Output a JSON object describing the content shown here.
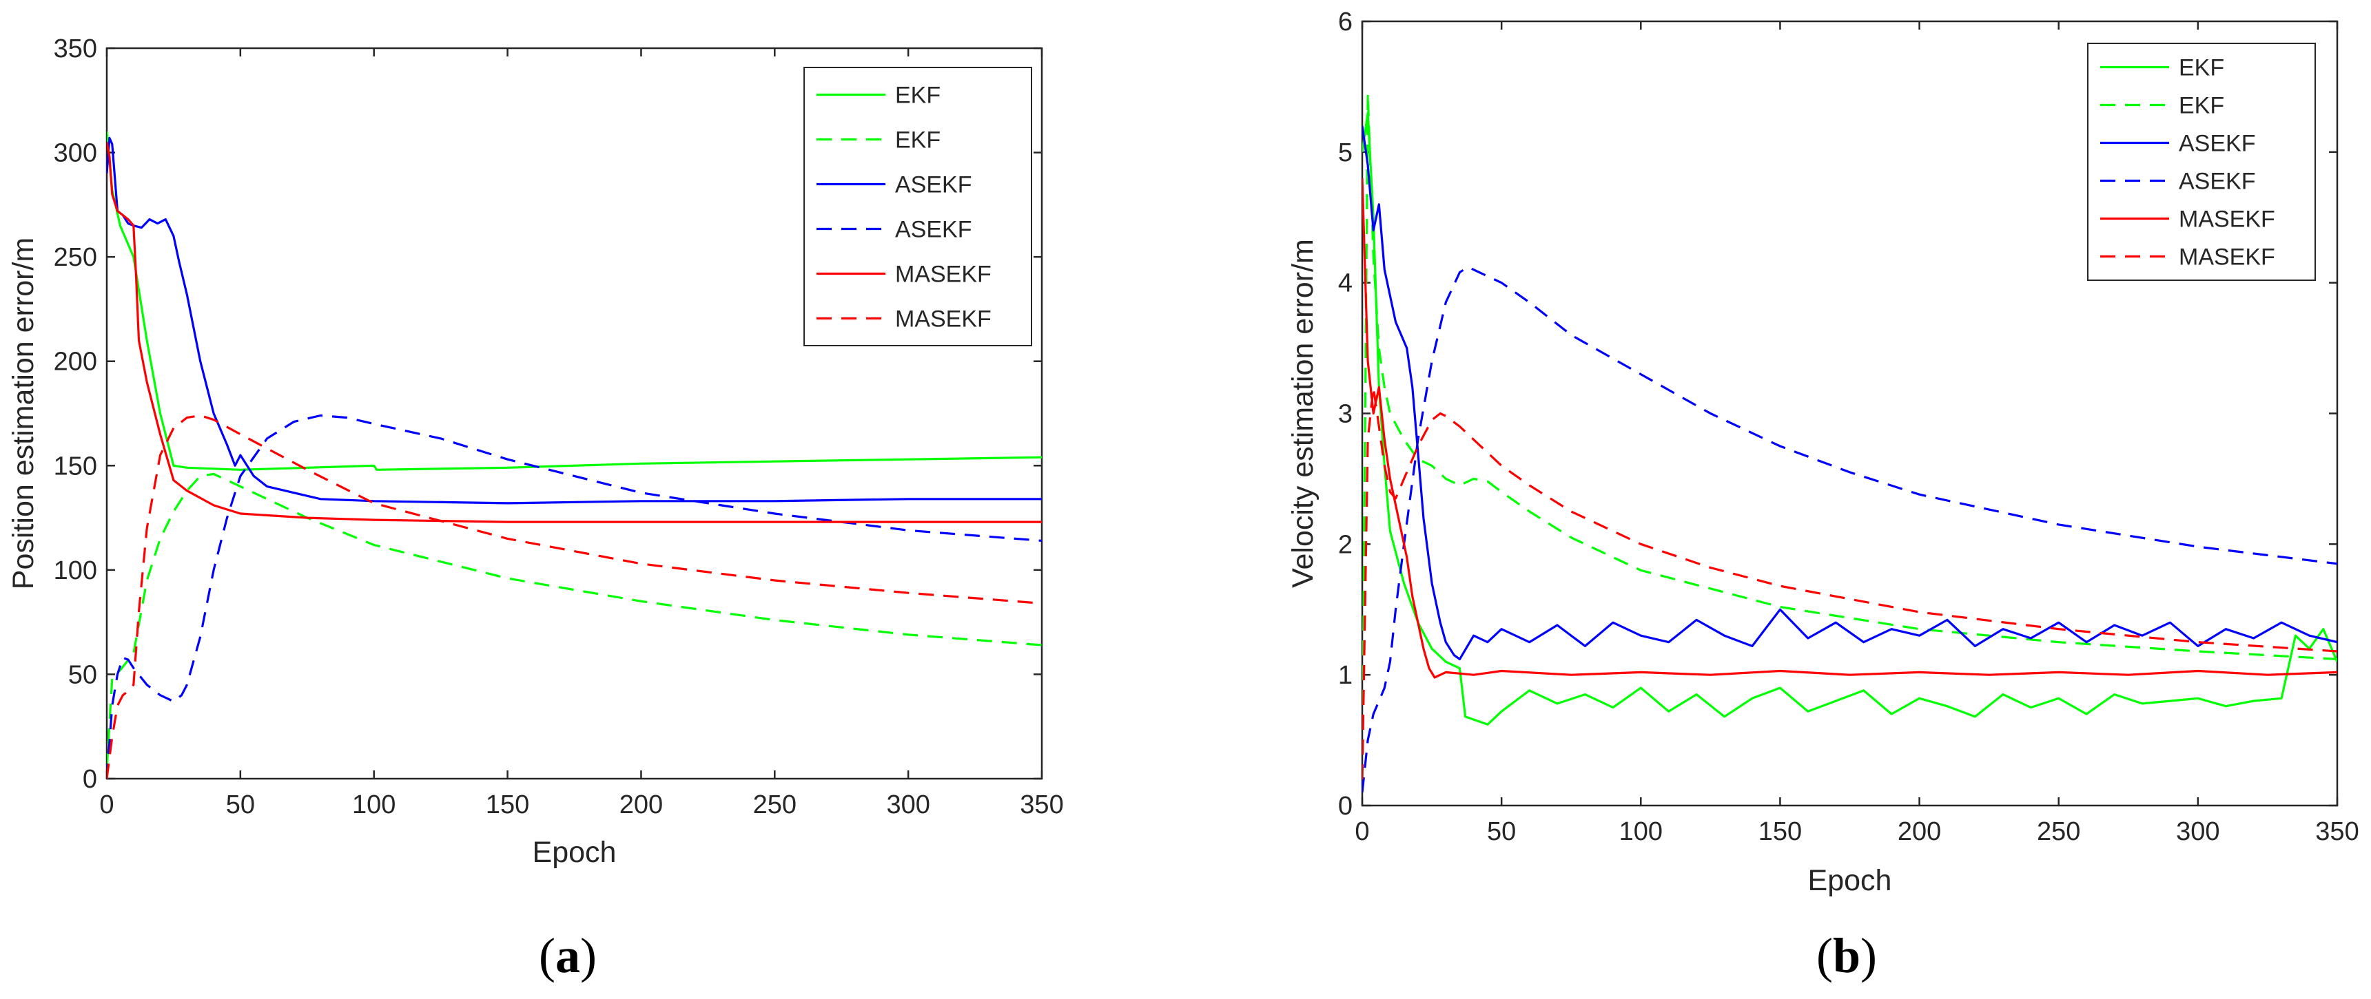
{
  "chart_data": [
    {
      "type": "line",
      "panel_label": "a",
      "xlabel": "Epoch",
      "ylabel": "Position estimation error/m",
      "xlim": [
        0,
        350
      ],
      "ylim": [
        0,
        350
      ],
      "xticks": [
        "0",
        "50",
        "100",
        "150",
        "200",
        "250",
        "300",
        "350"
      ],
      "yticks": [
        "0",
        "50",
        "100",
        "150",
        "200",
        "250",
        "300",
        "350"
      ],
      "legend_position": "top-right",
      "series": [
        {
          "name": "EKF",
          "color": "#00ff00",
          "dash": "solid",
          "x": [
            0,
            2,
            5,
            10,
            15,
            20,
            25,
            30,
            50,
            100,
            101,
            150,
            200,
            250,
            300,
            350
          ],
          "y": [
            310,
            282,
            265,
            250,
            210,
            175,
            150,
            149,
            148,
            150,
            148,
            149,
            151,
            152,
            153,
            154
          ]
        },
        {
          "name": "EKF",
          "color": "#00ff00",
          "dash": "dashed",
          "x": [
            0,
            2,
            5,
            10,
            15,
            20,
            25,
            30,
            35,
            40,
            50,
            75,
            100,
            150,
            200,
            250,
            300,
            350
          ],
          "y": [
            5,
            48,
            52,
            60,
            95,
            115,
            128,
            138,
            145,
            146,
            140,
            125,
            112,
            96,
            85,
            76,
            69,
            64
          ]
        },
        {
          "name": "ASEKF",
          "color": "#0000ff",
          "dash": "solid",
          "x": [
            0,
            1,
            2,
            4,
            6,
            8,
            10,
            13,
            16,
            19,
            22,
            25,
            27,
            30,
            35,
            40,
            45,
            48,
            50,
            55,
            60,
            80,
            100,
            150,
            200,
            250,
            300,
            350
          ],
          "y": [
            290,
            307,
            304,
            272,
            270,
            266,
            265,
            264,
            268,
            266,
            268,
            260,
            248,
            232,
            200,
            175,
            160,
            150,
            155,
            145,
            140,
            134,
            133,
            132,
            133,
            133,
            134,
            134
          ]
        },
        {
          "name": "ASEKF",
          "color": "#0000ff",
          "dash": "dashed",
          "x": [
            0,
            2,
            4,
            6,
            8,
            10,
            15,
            20,
            25,
            28,
            30,
            35,
            40,
            45,
            50,
            60,
            70,
            80,
            90,
            100,
            125,
            150,
            175,
            200,
            250,
            300,
            350
          ],
          "y": [
            0,
            35,
            50,
            58,
            57,
            53,
            45,
            40,
            37,
            40,
            45,
            68,
            100,
            125,
            145,
            163,
            171,
            174,
            173,
            170,
            163,
            153,
            145,
            137,
            127,
            119,
            114
          ]
        },
        {
          "name": "MASEKF",
          "color": "#ff0000",
          "dash": "solid",
          "x": [
            0,
            1,
            2,
            4,
            6,
            8,
            10,
            11,
            12,
            15,
            20,
            25,
            30,
            40,
            50,
            75,
            100,
            150,
            200,
            250,
            300,
            350
          ],
          "y": [
            305,
            298,
            280,
            272,
            270,
            268,
            265,
            240,
            210,
            190,
            165,
            143,
            138,
            131,
            127,
            125,
            124,
            123,
            123,
            123,
            123,
            123
          ]
        },
        {
          "name": "MASEKF",
          "color": "#ff0000",
          "dash": "dashed",
          "x": [
            0,
            2,
            4,
            6,
            8,
            10,
            12,
            15,
            20,
            25,
            30,
            35,
            40,
            50,
            75,
            100,
            150,
            200,
            250,
            300,
            350
          ],
          "y": [
            0,
            20,
            35,
            40,
            42,
            45,
            80,
            120,
            155,
            168,
            173,
            174,
            172,
            165,
            148,
            132,
            115,
            103,
            95,
            89,
            84
          ]
        }
      ]
    },
    {
      "type": "line",
      "panel_label": "b",
      "xlabel": "Epoch",
      "ylabel": "Velocity estimation error/m",
      "xlim": [
        0,
        350
      ],
      "ylim": [
        0,
        6
      ],
      "xticks": [
        "0",
        "50",
        "100",
        "150",
        "200",
        "250",
        "300",
        "350"
      ],
      "yticks": [
        "0",
        "1",
        "2",
        "3",
        "4",
        "5",
        "6"
      ],
      "legend_position": "top-right",
      "series": [
        {
          "name": "EKF",
          "color": "#00ff00",
          "dash": "solid",
          "x": [
            0,
            2,
            4,
            6,
            8,
            10,
            15,
            20,
            25,
            30,
            35,
            37,
            45,
            50,
            60,
            70,
            80,
            90,
            100,
            110,
            120,
            130,
            140,
            150,
            160,
            170,
            180,
            190,
            200,
            210,
            220,
            230,
            240,
            250,
            260,
            270,
            280,
            290,
            300,
            310,
            320,
            330,
            335,
            340,
            345,
            350
          ],
          "y": [
            5.0,
            5.3,
            4.5,
            3.2,
            2.6,
            2.1,
            1.7,
            1.4,
            1.2,
            1.1,
            1.05,
            0.68,
            0.62,
            0.72,
            0.88,
            0.78,
            0.85,
            0.75,
            0.9,
            0.72,
            0.85,
            0.68,
            0.82,
            0.9,
            0.72,
            0.8,
            0.88,
            0.7,
            0.82,
            0.76,
            0.68,
            0.85,
            0.75,
            0.82,
            0.7,
            0.85,
            0.78,
            0.8,
            0.82,
            0.76,
            0.8,
            0.82,
            1.3,
            1.2,
            1.35,
            1.1
          ]
        },
        {
          "name": "EKF",
          "color": "#00ff00",
          "dash": "dashed",
          "x": [
            0,
            2,
            4,
            6,
            8,
            10,
            15,
            20,
            25,
            30,
            35,
            40,
            45,
            50,
            60,
            75,
            100,
            150,
            200,
            250,
            300,
            350
          ],
          "y": [
            0.2,
            5.45,
            4.2,
            3.5,
            3.2,
            3.0,
            2.8,
            2.65,
            2.6,
            2.5,
            2.45,
            2.5,
            2.48,
            2.4,
            2.25,
            2.05,
            1.8,
            1.52,
            1.35,
            1.25,
            1.18,
            1.12
          ]
        },
        {
          "name": "ASEKF",
          "color": "#0000ff",
          "dash": "solid",
          "x": [
            0,
            2,
            4,
            6,
            8,
            10,
            12,
            14,
            16,
            18,
            20,
            22,
            25,
            28,
            30,
            33,
            35,
            40,
            45,
            50,
            60,
            70,
            80,
            90,
            100,
            110,
            120,
            130,
            140,
            150,
            160,
            170,
            180,
            190,
            200,
            210,
            220,
            230,
            240,
            250,
            260,
            270,
            280,
            290,
            300,
            310,
            320,
            330,
            340,
            350
          ],
          "y": [
            5.2,
            4.9,
            4.4,
            4.6,
            4.1,
            3.9,
            3.7,
            3.6,
            3.5,
            3.2,
            2.7,
            2.2,
            1.7,
            1.4,
            1.25,
            1.15,
            1.12,
            1.3,
            1.25,
            1.35,
            1.25,
            1.38,
            1.22,
            1.4,
            1.3,
            1.25,
            1.42,
            1.3,
            1.22,
            1.5,
            1.28,
            1.4,
            1.25,
            1.35,
            1.3,
            1.42,
            1.22,
            1.35,
            1.28,
            1.4,
            1.25,
            1.38,
            1.3,
            1.4,
            1.22,
            1.35,
            1.28,
            1.4,
            1.3,
            1.25
          ]
        },
        {
          "name": "ASEKF",
          "color": "#0000ff",
          "dash": "dashed",
          "x": [
            0,
            2,
            4,
            6,
            8,
            10,
            12,
            15,
            20,
            25,
            30,
            35,
            38,
            40,
            45,
            50,
            60,
            75,
            100,
            125,
            150,
            175,
            200,
            250,
            300,
            350
          ],
          "y": [
            0.1,
            0.5,
            0.7,
            0.8,
            0.9,
            1.1,
            1.5,
            2.0,
            2.8,
            3.4,
            3.85,
            4.08,
            4.12,
            4.1,
            4.05,
            4.0,
            3.85,
            3.6,
            3.3,
            3.0,
            2.75,
            2.55,
            2.38,
            2.15,
            1.98,
            1.85
          ]
        },
        {
          "name": "MASEKF",
          "color": "#ff0000",
          "dash": "solid",
          "x": [
            0,
            2,
            4,
            6,
            8,
            10,
            12,
            14,
            16,
            18,
            20,
            22,
            24,
            26,
            28,
            30,
            40,
            50,
            75,
            100,
            125,
            150,
            175,
            200,
            225,
            250,
            275,
            300,
            325,
            350
          ],
          "y": [
            4.8,
            3.4,
            3.0,
            3.2,
            2.8,
            2.5,
            2.3,
            2.1,
            1.9,
            1.6,
            1.4,
            1.2,
            1.05,
            0.98,
            1.0,
            1.02,
            1.0,
            1.03,
            1.0,
            1.02,
            1.0,
            1.03,
            1.0,
            1.02,
            1.0,
            1.02,
            1.0,
            1.03,
            1.0,
            1.02
          ]
        },
        {
          "name": "MASEKF",
          "color": "#ff0000",
          "dash": "dashed",
          "x": [
            0,
            2,
            4,
            6,
            8,
            10,
            12,
            15,
            20,
            25,
            28,
            30,
            35,
            40,
            50,
            60,
            75,
            100,
            125,
            150,
            200,
            250,
            300,
            350
          ],
          "y": [
            0.2,
            2.8,
            3.2,
            2.9,
            2.6,
            2.4,
            2.35,
            2.5,
            2.75,
            2.95,
            3.0,
            2.98,
            2.9,
            2.8,
            2.6,
            2.45,
            2.25,
            2.0,
            1.82,
            1.68,
            1.48,
            1.35,
            1.25,
            1.18
          ]
        }
      ]
    }
  ]
}
